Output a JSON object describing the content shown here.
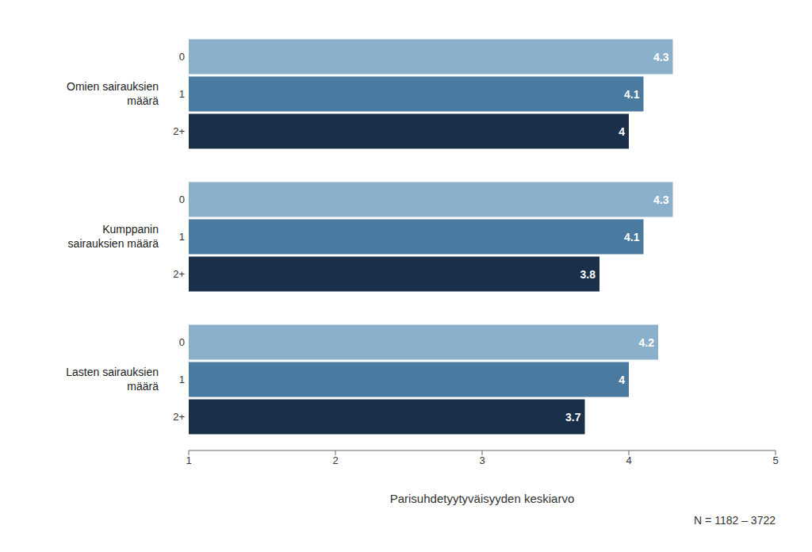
{
  "chart_data": {
    "type": "bar",
    "orientation": "horizontal",
    "categories": [
      "Omien sairauksien\nmäärä",
      "Kumppanin\nsairauksien määrä",
      "Lasten sairauksien\nmäärä"
    ],
    "series": [
      {
        "name": "0",
        "color": "#8ab0cc",
        "values": [
          4.3,
          4.3,
          4.2
        ]
      },
      {
        "name": "1",
        "color": "#4a7aa0",
        "values": [
          4.1,
          4.1,
          4.0
        ]
      },
      {
        "name": "2+",
        "color": "#1a2f4a",
        "values": [
          4.0,
          3.8,
          3.7
        ]
      }
    ],
    "xlabel": "Parisuhdetyytyväisyyden keskiarvo",
    "xlim": [
      1,
      5
    ],
    "xticks": [
      1,
      2,
      3,
      4,
      5
    ],
    "data_labels": true,
    "grid": false,
    "footnote": "N = 1182 – 3722"
  }
}
